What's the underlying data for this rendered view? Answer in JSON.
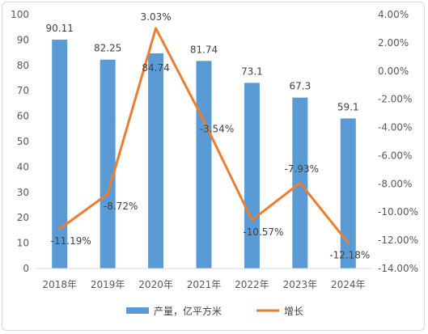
{
  "chart_data": {
    "type": "bar+line",
    "title": "",
    "categories": [
      "2018年",
      "2019年",
      "2020年",
      "2021年",
      "2022年",
      "2023年",
      "2024年"
    ],
    "series": [
      {
        "name": "产量，亿平方米",
        "type": "bar",
        "axis": "left",
        "color": "#5b9bd5",
        "values": [
          90.11,
          82.25,
          84.74,
          81.74,
          73.1,
          67.3,
          59.1
        ],
        "labels": [
          "90.11",
          "82.25",
          "84.74",
          "81.74",
          "73.1",
          "67.3",
          "59.1"
        ]
      },
      {
        "name": "增长",
        "type": "line",
        "axis": "right",
        "color": "#ed7d31",
        "values": [
          -11.19,
          -8.72,
          3.03,
          -3.54,
          -10.57,
          -7.93,
          -12.18
        ],
        "labels": [
          "-11.19%",
          "-8.72%",
          "3.03%",
          "-3.54%",
          "-10.57%",
          "-7.93%",
          "-12.18%"
        ]
      }
    ],
    "y_left": {
      "min": 0,
      "max": 100,
      "ticks": [
        0,
        10,
        20,
        30,
        40,
        50,
        60,
        70,
        80,
        90,
        100
      ],
      "tick_labels": [
        "0",
        "10",
        "20",
        "30",
        "40",
        "50",
        "60",
        "70",
        "80",
        "90",
        "100"
      ]
    },
    "y_right": {
      "min": -14,
      "max": 4,
      "ticks": [
        -14,
        -12,
        -10,
        -8,
        -6,
        -4,
        -2,
        0,
        2,
        4
      ],
      "tick_labels": [
        "-14.00%",
        "-12.00%",
        "-10.00%",
        "-8.00%",
        "-6.00%",
        "-4.00%",
        "-2.00%",
        "0.00%",
        "2.00%",
        "4.00%"
      ]
    },
    "grid": false,
    "legend": "bottom"
  }
}
